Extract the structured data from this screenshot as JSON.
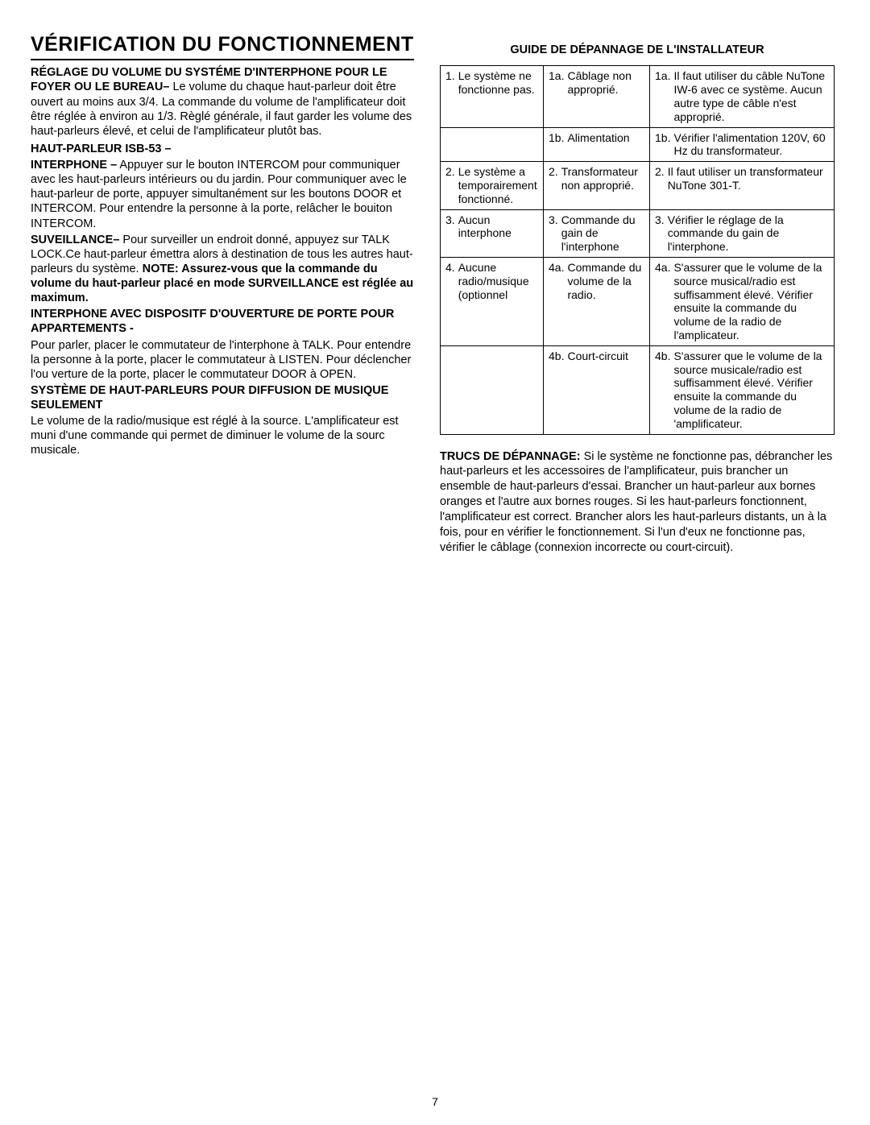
{
  "page": {
    "title": "VÉRIFICATION DU FONCTIONNEMENT",
    "number": "7"
  },
  "left": {
    "p1_bold": "RÉGLAGE DU VOLUME DU SYSTÉME D'INTERPHONE POUR LE FOYER OU LE BUREAU–",
    "p1_rest": " Le volume du chaque haut-parleur doit être ouvert au moins aux 3/4. La commande du volume de l'amplificateur doit être réglée à environ au 1/3. Règlé générale, il faut garder les volume des haut-parleurs élevé, et celui de l'amplificateur plutôt bas.",
    "p2_bold": "HAUT-PARLEUR ISB-53 –",
    "p3_bold": "INTERPHONE –",
    "p3_rest": " Appuyer sur le bouton INTERCOM pour communiquer avec les haut-parleurs intérieurs ou du jardin. Pour communiquer avec le haut-parleur de porte, appuyer simultanément sur les boutons DOOR et INTERCOM. Pour entendre la personne à la porte, relâcher le bouiton INTERCOM.",
    "p4_bold": "SUVEILLANCE–",
    "p4_rest1": " Pour surveiller un endroit donné, appuyez sur TALK LOCK.Ce haut-parleur émettra alors à destination de tous les autres haut-parleurs du système. ",
    "p4_bold2": "NOTE: Assurez-vous que la commande du volume du haut-parleur placé en mode SURVEILLANCE est réglée au maximum.",
    "p5_bold": "INTERPHONE AVEC DISPOSITF D'OUVERTURE DE PORTE POUR APPARTEMENTS -",
    "p5_rest": "Pour parler, placer le commutateur de l'interphone à TALK. Pour entendre la personne à la porte, placer le commutateur à LISTEN. Pour déclencher l'ou verture de la porte, placer le commutateur DOOR à OPEN.",
    "p6_bold": "SYSTÈME DE HAUT-PARLEURS POUR DIFFUSION DE MUSIQUE SEULEMENT",
    "p6_rest": "Le volume de la radio/musique est réglé à la source. L'amplificateur est muni d'une commande qui permet de diminuer le volume de la sourc musicale."
  },
  "right": {
    "guide_heading": "GUIDE DE DÉPANNAGE DE L'INSTALLATEUR",
    "tips_bold": "TRUCS DE DÉPANNAGE:",
    "tips_rest": " Si le système ne fonctionne pas, débrancher les haut-parleurs et les accessoires de l'amplificateur, puis brancher un ensemble de haut-parleurs d'essai. Brancher un haut-parleur aux bornes oranges et l'autre aux bornes rouges. Si les haut-parleurs fonctionnent, l'amplificateur est correct. Brancher alors les haut-parleurs distants, un à la fois, pour en vérifier le fonctionnement. Si l'un d'eux ne fonctionne pas, vérifier le câblage (connexion incorrecte ou court-circuit)."
  },
  "table": {
    "rows": [
      {
        "c1_n": "1.",
        "c1_t": "Le système ne fonctionne pas.",
        "c2_n": "1a.",
        "c2_t": "Câblage non approprié.",
        "c3_n": "1a.",
        "c3_t": "Il faut utiliser du câble NuTone IW-6 avec ce système. Aucun autre type de câble n'est approprié."
      },
      {
        "c1_blank": true,
        "c2_n": "1b.",
        "c2_t": "Alimentation",
        "c3_n": "1b.",
        "c3_t": "Vérifier l'alimentation 120V, 60 Hz du transformateur."
      },
      {
        "c1_n": "2.",
        "c1_t": "Le système a temporairement fonctionné.",
        "c2_n": "2.",
        "c2_t": "Transformateur non approprié.",
        "c3_n": "2.",
        "c3_t": "Il faut utiliser un transformateur NuTone 301-T."
      },
      {
        "c1_n": "3.",
        "c1_t": "Aucun interphone",
        "c2_n": "3.",
        "c2_t": "Commande du gain de l'interphone",
        "c3_n": "3.",
        "c3_t": "Vérifier le réglage de la commande du gain de l'interphone."
      },
      {
        "c1_n": "4.",
        "c1_t": "Aucune radio/musique (optionnel",
        "c2_n": "4a.",
        "c2_t": "Commande du volume de la radio.",
        "c3_n": "4a.",
        "c3_t": "S'assurer que le volume de la source musical/radio est suffisamment élevé. Vérifier ensuite la commande du volume de la radio de l'amplicateur."
      },
      {
        "c1_blank": true,
        "c2_n": "4b.",
        "c2_t": "Court-circuit",
        "c3_n": "4b.",
        "c3_t": "S'assurer que le volume de la source musicale/radio est suffisamment élevé. Vérifier ensuite la commande du volume de la radio de 'amplificateur."
      }
    ]
  }
}
